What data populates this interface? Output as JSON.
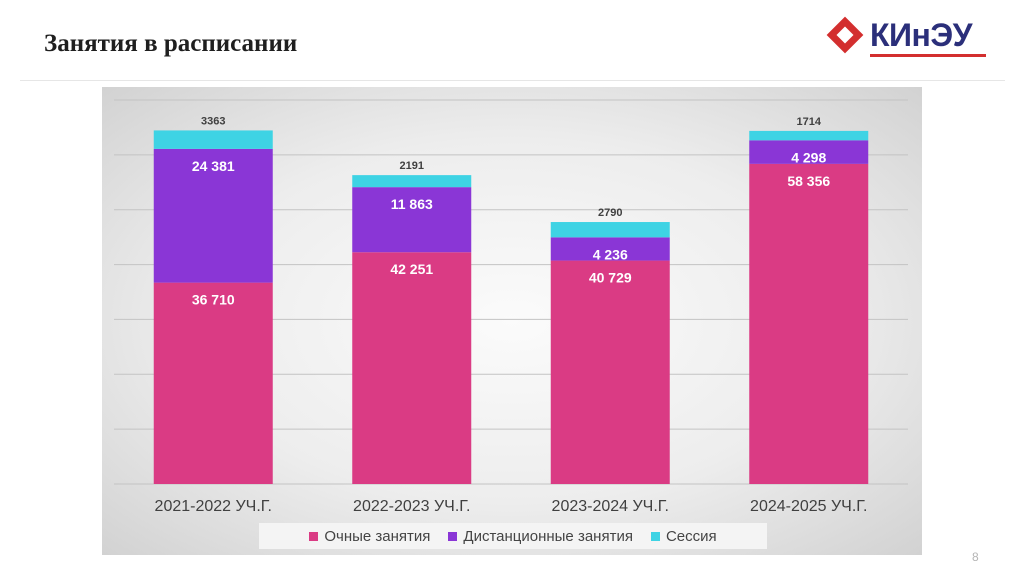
{
  "slide": {
    "title": "Занятия в расписании",
    "page_number": "8"
  },
  "logo": {
    "text": "КИнЭУ"
  },
  "colors": {
    "fulltime": "#da3b84",
    "distance": "#8a36d6",
    "session": "#3ed3e4"
  },
  "chart_data": {
    "type": "bar",
    "stacked": true,
    "title": "",
    "xlabel": "",
    "ylabel": "",
    "ylim": [
      0,
      70000
    ],
    "categories": [
      "2021-2022 уч.г.",
      "2022-2023 уч.г.",
      "2023-2024 уч.г.",
      "2024-2025 уч.г."
    ],
    "series": [
      {
        "name": "Очные занятия",
        "values": [
          36710,
          42251,
          40729,
          58356
        ],
        "labels": [
          "36 710",
          "42 251",
          "40 729",
          "58 356"
        ]
      },
      {
        "name": "Дистанционные занятия",
        "values": [
          24381,
          11863,
          4236,
          4298
        ],
        "labels": [
          "24 381",
          "11 863",
          "4 236",
          "4 298"
        ]
      },
      {
        "name": "Сессия",
        "values": [
          3363,
          2191,
          2790,
          1714
        ],
        "labels": [
          "3363",
          "2191",
          "2790",
          "1714"
        ]
      }
    ],
    "grid": true,
    "legend": "bottom"
  }
}
